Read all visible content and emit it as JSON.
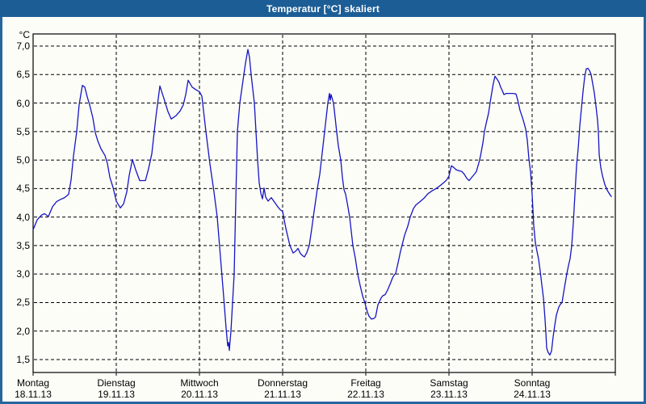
{
  "window": {
    "title": "Temperatur [°C] skaliert"
  },
  "colors": {
    "titlebar": "#1c5d96",
    "window_border": "#26659e",
    "line": "#1515c3",
    "grid": "#000000",
    "background": "#fdfdf8"
  },
  "chart_data": {
    "type": "line",
    "title": "Temperatur [°C] skaliert",
    "y_unit_label": "°C",
    "ylabel": "Temperatur",
    "xlabel": "",
    "ylim": [
      1.5,
      7.0
    ],
    "y_tick_interval": 0.5,
    "grid": "dashed",
    "legend": "none",
    "y_ticks": [
      {
        "value": 7.0,
        "label": "7,0"
      },
      {
        "value": 6.5,
        "label": "6,5"
      },
      {
        "value": 6.0,
        "label": "6,0"
      },
      {
        "value": 5.5,
        "label": "5,5"
      },
      {
        "value": 5.0,
        "label": "5,0"
      },
      {
        "value": 4.5,
        "label": "4,5"
      },
      {
        "value": 4.0,
        "label": "4,0"
      },
      {
        "value": 3.5,
        "label": "3,5"
      },
      {
        "value": 3.0,
        "label": "3,0"
      },
      {
        "value": 2.5,
        "label": "2,5"
      },
      {
        "value": 2.0,
        "label": "2,0"
      },
      {
        "value": 1.5,
        "label": "1,5"
      }
    ],
    "x_axis": {
      "range_days": [
        0,
        7
      ],
      "days": [
        {
          "name": "Montag",
          "date": "18.11.13"
        },
        {
          "name": "Dienstag",
          "date": "19.11.13"
        },
        {
          "name": "Mittwoch",
          "date": "20.11.13"
        },
        {
          "name": "Donnerstag",
          "date": "21.11.13"
        },
        {
          "name": "Freitag",
          "date": "22.11.13"
        },
        {
          "name": "Samstag",
          "date": "23.11.13"
        },
        {
          "name": "Sonntag",
          "date": "24.11.13"
        }
      ]
    },
    "series": [
      {
        "name": "Temperatur",
        "color": "#1515c3",
        "points": [
          [
            0,
            3.78
          ],
          [
            0.049,
            3.95
          ],
          [
            0.097,
            4.03
          ],
          [
            0.136,
            4.06
          ],
          [
            0.184,
            4.01
          ],
          [
            0.233,
            4.18
          ],
          [
            0.282,
            4.27
          ],
          [
            0.33,
            4.31
          ],
          [
            0.379,
            4.34
          ],
          [
            0.427,
            4.4
          ],
          [
            0.456,
            4.65
          ],
          [
            0.485,
            5.07
          ],
          [
            0.524,
            5.5
          ],
          [
            0.553,
            5.97
          ],
          [
            0.592,
            6.31
          ],
          [
            0.621,
            6.28
          ],
          [
            0.65,
            6.11
          ],
          [
            0.68,
            5.97
          ],
          [
            0.718,
            5.74
          ],
          [
            0.748,
            5.48
          ],
          [
            0.777,
            5.34
          ],
          [
            0.816,
            5.2
          ],
          [
            0.864,
            5.08
          ],
          [
            0.893,
            4.94
          ],
          [
            0.922,
            4.7
          ],
          [
            0.961,
            4.52
          ],
          [
            1,
            4.28
          ],
          [
            1.049,
            4.16
          ],
          [
            1.087,
            4.23
          ],
          [
            1.126,
            4.44
          ],
          [
            1.155,
            4.73
          ],
          [
            1.194,
            5.01
          ],
          [
            1.233,
            4.83
          ],
          [
            1.282,
            4.64
          ],
          [
            1.35,
            4.64
          ],
          [
            1.388,
            4.85
          ],
          [
            1.427,
            5.11
          ],
          [
            1.476,
            5.75
          ],
          [
            1.524,
            6.3
          ],
          [
            1.573,
            6.08
          ],
          [
            1.621,
            5.85
          ],
          [
            1.66,
            5.72
          ],
          [
            1.718,
            5.78
          ],
          [
            1.767,
            5.86
          ],
          [
            1.806,
            5.97
          ],
          [
            1.835,
            6.15
          ],
          [
            1.864,
            6.4
          ],
          [
            1.913,
            6.28
          ],
          [
            1.961,
            6.23
          ],
          [
            2,
            6.2
          ],
          [
            2.029,
            6.12
          ],
          [
            2.078,
            5.5
          ],
          [
            2.126,
            4.93
          ],
          [
            2.175,
            4.44
          ],
          [
            2.214,
            4.0
          ],
          [
            2.252,
            3.3
          ],
          [
            2.291,
            2.6
          ],
          [
            2.32,
            2.05
          ],
          [
            2.34,
            1.74
          ],
          [
            2.35,
            1.8
          ],
          [
            2.359,
            1.66
          ],
          [
            2.379,
            2.0
          ],
          [
            2.398,
            2.5
          ],
          [
            2.417,
            3.0
          ],
          [
            2.437,
            4.3
          ],
          [
            2.456,
            5.5
          ],
          [
            2.485,
            6.0
          ],
          [
            2.524,
            6.4
          ],
          [
            2.553,
            6.7
          ],
          [
            2.583,
            6.94
          ],
          [
            2.602,
            6.8
          ],
          [
            2.621,
            6.5
          ],
          [
            2.641,
            6.25
          ],
          [
            2.66,
            6.0
          ],
          [
            2.68,
            5.5
          ],
          [
            2.699,
            5.0
          ],
          [
            2.718,
            4.6
          ],
          [
            2.738,
            4.42
          ],
          [
            2.757,
            4.32
          ],
          [
            2.777,
            4.51
          ],
          [
            2.796,
            4.35
          ],
          [
            2.825,
            4.28
          ],
          [
            2.864,
            4.34
          ],
          [
            2.903,
            4.26
          ],
          [
            2.942,
            4.18
          ],
          [
            2.971,
            4.13
          ],
          [
            3,
            4.1
          ],
          [
            3.039,
            3.8
          ],
          [
            3.087,
            3.5
          ],
          [
            3.126,
            3.37
          ],
          [
            3.155,
            3.4
          ],
          [
            3.184,
            3.45
          ],
          [
            3.214,
            3.36
          ],
          [
            3.243,
            3.32
          ],
          [
            3.262,
            3.3
          ],
          [
            3.291,
            3.38
          ],
          [
            3.32,
            3.5
          ],
          [
            3.35,
            3.8
          ],
          [
            3.369,
            4.0
          ],
          [
            3.398,
            4.3
          ],
          [
            3.417,
            4.5
          ],
          [
            3.447,
            4.75
          ],
          [
            3.466,
            5.0
          ],
          [
            3.485,
            5.25
          ],
          [
            3.505,
            5.5
          ],
          [
            3.524,
            5.75
          ],
          [
            3.544,
            6.0
          ],
          [
            3.563,
            6.17
          ],
          [
            3.573,
            6.05
          ],
          [
            3.583,
            6.15
          ],
          [
            3.602,
            6.05
          ],
          [
            3.612,
            6.0
          ],
          [
            3.631,
            5.75
          ],
          [
            3.65,
            5.5
          ],
          [
            3.67,
            5.25
          ],
          [
            3.699,
            5.0
          ],
          [
            3.718,
            4.7
          ],
          [
            3.738,
            4.48
          ],
          [
            3.757,
            4.4
          ],
          [
            3.777,
            4.25
          ],
          [
            3.806,
            4.0
          ],
          [
            3.845,
            3.5
          ],
          [
            3.874,
            3.28
          ],
          [
            3.903,
            3.0
          ],
          [
            3.932,
            2.8
          ],
          [
            3.961,
            2.62
          ],
          [
            3.99,
            2.49
          ],
          [
            4.019,
            2.33
          ],
          [
            4.039,
            2.26
          ],
          [
            4.068,
            2.21
          ],
          [
            4.097,
            2.22
          ],
          [
            4.117,
            2.25
          ],
          [
            4.146,
            2.46
          ],
          [
            4.165,
            2.52
          ],
          [
            4.184,
            2.58
          ],
          [
            4.204,
            2.62
          ],
          [
            4.233,
            2.64
          ],
          [
            4.262,
            2.72
          ],
          [
            4.291,
            2.82
          ],
          [
            4.32,
            2.93
          ],
          [
            4.34,
            2.98
          ],
          [
            4.359,
            3.01
          ],
          [
            4.388,
            3.2
          ],
          [
            4.417,
            3.4
          ],
          [
            4.437,
            3.51
          ],
          [
            4.466,
            3.68
          ],
          [
            4.505,
            3.84
          ],
          [
            4.534,
            4.0
          ],
          [
            4.573,
            4.15
          ],
          [
            4.602,
            4.21
          ],
          [
            4.651,
            4.27
          ],
          [
            4.699,
            4.33
          ],
          [
            4.748,
            4.41
          ],
          [
            4.796,
            4.46
          ],
          [
            4.845,
            4.5
          ],
          [
            4.893,
            4.55
          ],
          [
            4.942,
            4.61
          ],
          [
            4.971,
            4.65
          ],
          [
            5,
            4.72
          ],
          [
            5.029,
            4.9
          ],
          [
            5.058,
            4.87
          ],
          [
            5.087,
            4.83
          ],
          [
            5.126,
            4.81
          ],
          [
            5.155,
            4.8
          ],
          [
            5.184,
            4.75
          ],
          [
            5.214,
            4.68
          ],
          [
            5.243,
            4.64
          ],
          [
            5.282,
            4.71
          ],
          [
            5.311,
            4.76
          ],
          [
            5.33,
            4.8
          ],
          [
            5.359,
            4.95
          ],
          [
            5.379,
            5.07
          ],
          [
            5.408,
            5.3
          ],
          [
            5.427,
            5.51
          ],
          [
            5.456,
            5.7
          ],
          [
            5.476,
            5.82
          ],
          [
            5.505,
            6.1
          ],
          [
            5.534,
            6.35
          ],
          [
            5.553,
            6.47
          ],
          [
            5.583,
            6.41
          ],
          [
            5.602,
            6.36
          ],
          [
            5.621,
            6.28
          ],
          [
            5.641,
            6.22
          ],
          [
            5.66,
            6.15
          ],
          [
            5.689,
            6.17
          ],
          [
            5.728,
            6.17
          ],
          [
            5.767,
            6.17
          ],
          [
            5.806,
            6.16
          ],
          [
            5.825,
            6.06
          ],
          [
            5.854,
            5.87
          ],
          [
            5.883,
            5.75
          ],
          [
            5.903,
            5.65
          ],
          [
            5.922,
            5.54
          ],
          [
            5.942,
            5.35
          ],
          [
            5.961,
            5.02
          ],
          [
            5.981,
            4.8
          ],
          [
            6,
            4.4
          ],
          [
            6.019,
            3.85
          ],
          [
            6.039,
            3.55
          ],
          [
            6.058,
            3.4
          ],
          [
            6.078,
            3.26
          ],
          [
            6.097,
            3.05
          ],
          [
            6.117,
            2.8
          ],
          [
            6.136,
            2.58
          ],
          [
            6.155,
            2.2
          ],
          [
            6.165,
            1.97
          ],
          [
            6.175,
            1.7
          ],
          [
            6.194,
            1.62
          ],
          [
            6.214,
            1.58
          ],
          [
            6.233,
            1.65
          ],
          [
            6.252,
            1.9
          ],
          [
            6.272,
            2.1
          ],
          [
            6.291,
            2.28
          ],
          [
            6.32,
            2.42
          ],
          [
            6.34,
            2.47
          ],
          [
            6.359,
            2.5
          ],
          [
            6.388,
            2.76
          ],
          [
            6.417,
            3.01
          ],
          [
            6.437,
            3.15
          ],
          [
            6.456,
            3.27
          ],
          [
            6.476,
            3.5
          ],
          [
            6.495,
            3.9
          ],
          [
            6.515,
            4.4
          ],
          [
            6.534,
            4.9
          ],
          [
            6.553,
            5.2
          ],
          [
            6.573,
            5.6
          ],
          [
            6.592,
            5.9
          ],
          [
            6.612,
            6.2
          ],
          [
            6.631,
            6.45
          ],
          [
            6.65,
            6.6
          ],
          [
            6.67,
            6.61
          ],
          [
            6.689,
            6.57
          ],
          [
            6.709,
            6.5
          ],
          [
            6.728,
            6.34
          ],
          [
            6.748,
            6.18
          ],
          [
            6.767,
            5.95
          ],
          [
            6.786,
            5.7
          ],
          [
            6.796,
            5.5
          ],
          [
            6.806,
            5.1
          ],
          [
            6.825,
            4.87
          ],
          [
            6.845,
            4.73
          ],
          [
            6.874,
            4.57
          ],
          [
            6.903,
            4.47
          ],
          [
            6.932,
            4.4
          ],
          [
            6.951,
            4.36
          ]
        ]
      }
    ]
  }
}
